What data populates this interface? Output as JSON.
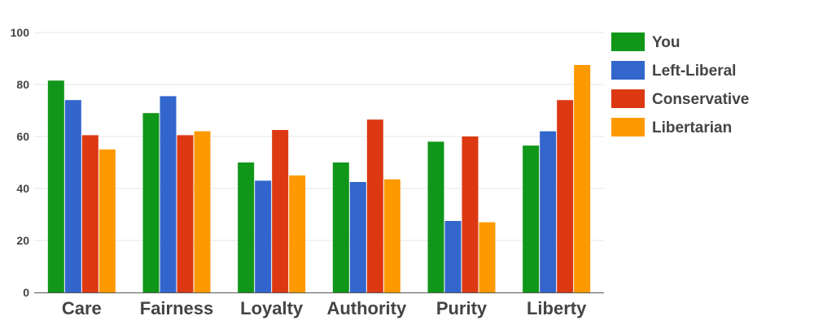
{
  "chart_data": {
    "type": "bar",
    "title": "",
    "xlabel": "",
    "ylabel": "",
    "ylim": [
      0,
      100
    ],
    "yticks": [
      0,
      20,
      40,
      60,
      80,
      100
    ],
    "grid": true,
    "legend_position": "right",
    "categories": [
      "Care",
      "Fairness",
      "Loyalty",
      "Authority",
      "Purity",
      "Liberty"
    ],
    "series": [
      {
        "name": "You",
        "color": "#109618",
        "values": [
          81.5,
          69,
          50,
          50,
          58,
          56.5
        ]
      },
      {
        "name": "Left-Liberal",
        "color": "#3366cc",
        "values": [
          74,
          75.5,
          43,
          42.5,
          27.5,
          62
        ]
      },
      {
        "name": "Conservative",
        "color": "#dc3912",
        "values": [
          60.5,
          60.5,
          62.5,
          66.5,
          60,
          74
        ]
      },
      {
        "name": "Libertarian",
        "color": "#ff9900",
        "values": [
          55,
          62,
          45,
          43.5,
          27,
          87.5
        ]
      }
    ]
  }
}
